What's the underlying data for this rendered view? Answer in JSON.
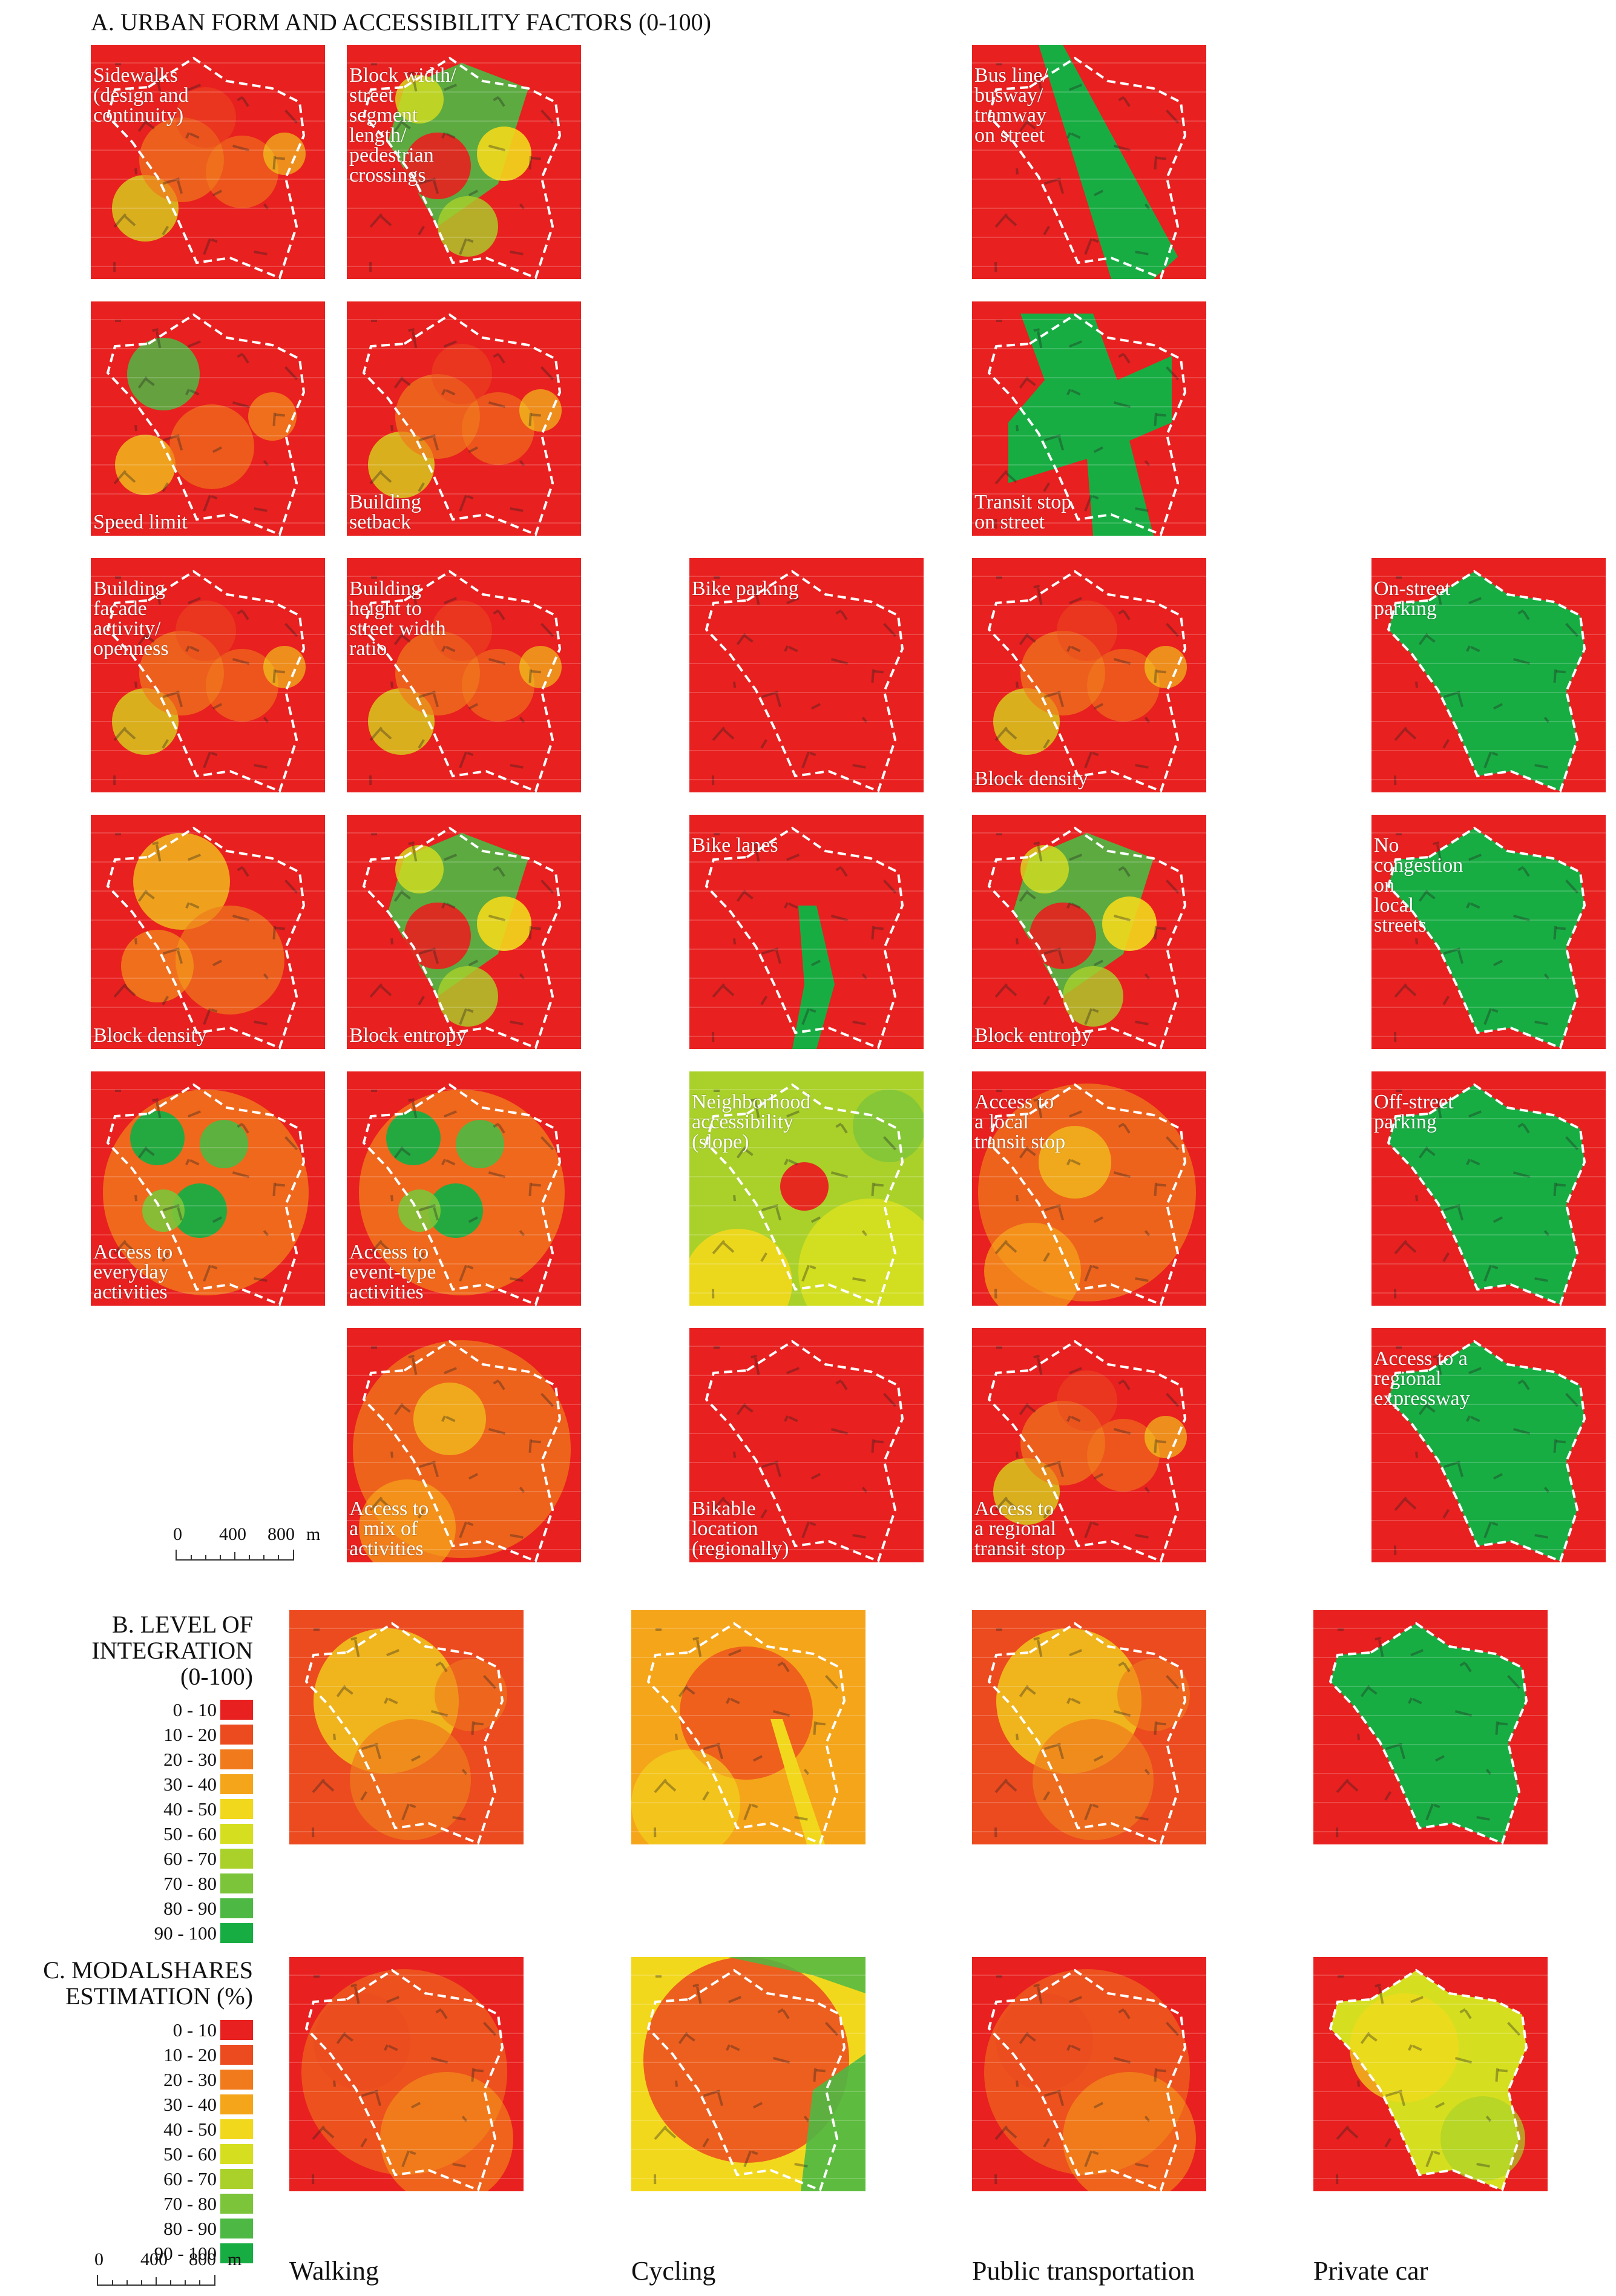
{
  "section_a": {
    "title": "A. URBAN FORM AND ACCESSIBILITY FACTORS (0-100)"
  },
  "section_b": {
    "title_lines": [
      "B. LEVEL OF",
      "INTEGRATION",
      "(0-100)"
    ]
  },
  "section_c": {
    "title_lines": [
      "C. MODALSHARES",
      "ESTIMATION (%)"
    ]
  },
  "legend_ranges": [
    "0 - 10",
    "10 - 20",
    "20 - 30",
    "30 - 40",
    "40 - 50",
    "50 - 60",
    "60 - 70",
    "70  - 80",
    "80 - 90",
    "90 - 100"
  ],
  "legend_colors": [
    "#e8201f",
    "#ec4a1f",
    "#f07a1c",
    "#f5a51a",
    "#f2d81c",
    "#d6df1f",
    "#a9d12a",
    "#7cc43a",
    "#4db944",
    "#18ad43"
  ],
  "scale_bar": {
    "labels": [
      "0",
      "400",
      "800",
      "m"
    ]
  },
  "modes": [
    "Walking",
    "Cycling",
    "Public transportation",
    "Private car"
  ],
  "factor_maps": [
    {
      "label": "Sidewalks\n(design and\ncontinuity)",
      "label_pos": "top"
    },
    {
      "label": "Block width/\nstreet\nsegment\nlength/\npedestrian\ncrossings",
      "label_pos": "top"
    },
    {
      "label": "Bus line/\nbusway/\ntramway\non street",
      "label_pos": "top"
    },
    {
      "label": "Speed limit",
      "label_pos": "bottom"
    },
    {
      "label": "Building\nsetback",
      "label_pos": "bottom"
    },
    {
      "label": "Transit stop\non street",
      "label_pos": "bottom"
    },
    {
      "label": "Building\nfacade\nactivity/\nopenness",
      "label_pos": "top"
    },
    {
      "label": "Building\nheight to\nstreet width\nratio",
      "label_pos": "top"
    },
    {
      "label": "Bike parking",
      "label_pos": "top"
    },
    {
      "label": "Block density",
      "label_pos": "bottom"
    },
    {
      "label": "On-street\nparking",
      "label_pos": "top"
    },
    {
      "label": "Block density",
      "label_pos": "bottom"
    },
    {
      "label": "Block entropy",
      "label_pos": "bottom"
    },
    {
      "label": "Bike lanes",
      "label_pos": "top"
    },
    {
      "label": "Block entropy",
      "label_pos": "bottom"
    },
    {
      "label": "No\ncongestion\non\nlocal\nstreets",
      "label_pos": "top"
    },
    {
      "label": "Access to\neveryday\nactivities",
      "label_pos": "bottom"
    },
    {
      "label": "Access to\nevent-type\nactivities",
      "label_pos": "bottom"
    },
    {
      "label": "Neighborhood\naccessibility\n(slope)",
      "label_pos": "top"
    },
    {
      "label": "Access to\na local\ntransit stop",
      "label_pos": "top"
    },
    {
      "label": "Off-street\nparking",
      "label_pos": "top"
    },
    {
      "label": "Access to\na mix of\nactivities",
      "label_pos": "bottom"
    },
    {
      "label": "Bikable\nlocation\n(regionally)",
      "label_pos": "bottom"
    },
    {
      "label": "Access to\na regional\ntransit stop",
      "label_pos": "bottom"
    },
    {
      "label": "Access to a\nregional\nexpressway",
      "label_pos": "top"
    }
  ]
}
